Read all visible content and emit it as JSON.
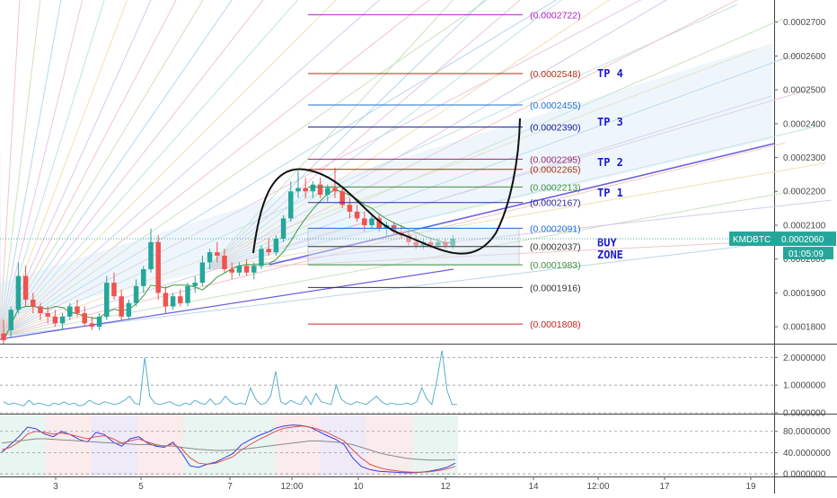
{
  "chart_data": [
    {
      "type": "candlestick",
      "symbol": "KMDBTC",
      "last_price": "0.0002060",
      "countdown": "01:05:09",
      "ylim": [
        0.000175,
        0.000276
      ],
      "y_ticks": [
        "0.0002700",
        "0.0002600",
        "0.0002500",
        "0.0002400",
        "0.0002300",
        "0.0002200",
        "0.0002100",
        "0.0002000",
        "0.0001900",
        "0.0001800"
      ],
      "x_ticks": [
        "3",
        "5",
        "7",
        "12:00",
        "10",
        "12",
        "14",
        "12:00",
        "17",
        "19"
      ],
      "candles": [
        [
          0.000178,
          0.000182,
          0.000175,
          0.000176
        ],
        [
          0.000179,
          0.000186,
          0.000177,
          0.000185
        ],
        [
          0.000185,
          0.000199,
          0.000184,
          0.000195
        ],
        [
          0.000195,
          0.000198,
          0.000186,
          0.000188
        ],
        [
          0.000188,
          0.00019,
          0.000184,
          0.000186
        ],
        [
          0.000186,
          0.000187,
          0.000182,
          0.000184
        ],
        [
          0.000184,
          0.000186,
          0.000181,
          0.000183
        ],
        [
          0.000183,
          0.000185,
          0.00018,
          0.000181
        ],
        [
          0.000181,
          0.000184,
          0.000179,
          0.000183
        ],
        [
          0.000183,
          0.000187,
          0.000182,
          0.000186
        ],
        [
          0.000186,
          0.000188,
          0.000183,
          0.000184
        ],
        [
          0.000184,
          0.000186,
          0.00018,
          0.000181
        ],
        [
          0.000181,
          0.000183,
          0.000179,
          0.00018
        ],
        [
          0.00018,
          0.000184,
          0.000179,
          0.000183
        ],
        [
          0.000183,
          0.000195,
          0.000182,
          0.000193
        ],
        [
          0.000193,
          0.000196,
          0.000188,
          0.000189
        ],
        [
          0.000189,
          0.000191,
          0.000182,
          0.000183
        ],
        [
          0.000183,
          0.000188,
          0.000182,
          0.000187
        ],
        [
          0.000187,
          0.000194,
          0.000186,
          0.000192
        ],
        [
          0.000192,
          0.000198,
          0.00019,
          0.000197
        ],
        [
          0.000197,
          0.000209,
          0.000196,
          0.000205
        ],
        [
          0.000205,
          0.000207,
          0.000188,
          0.00019
        ],
        [
          0.00019,
          0.000192,
          0.000184,
          0.000186
        ],
        [
          0.000186,
          0.00019,
          0.000185,
          0.000189
        ],
        [
          0.000189,
          0.000191,
          0.000186,
          0.000187
        ],
        [
          0.000187,
          0.000193,
          0.000186,
          0.000192
        ],
        [
          0.000192,
          0.000195,
          0.00019,
          0.000193
        ],
        [
          0.000193,
          0.000201,
          0.000192,
          0.000199
        ],
        [
          0.000199,
          0.000203,
          0.000197,
          0.000202
        ],
        [
          0.000202,
          0.000205,
          0.000199,
          0.000201
        ],
        [
          0.000201,
          0.000203,
          0.000196,
          0.000197
        ],
        [
          0.000197,
          0.000199,
          0.000194,
          0.000196
        ],
        [
          0.000196,
          0.000199,
          0.000195,
          0.000198
        ],
        [
          0.000198,
          0.0002,
          0.000195,
          0.000196
        ],
        [
          0.000196,
          0.000199,
          0.000194,
          0.000198
        ],
        [
          0.000198,
          0.000204,
          0.000197,
          0.000203
        ],
        [
          0.000203,
          0.000206,
          0.000201,
          0.000202
        ],
        [
          0.000202,
          0.000207,
          0.000201,
          0.000206
        ],
        [
          0.000206,
          0.000213,
          0.000205,
          0.000212
        ],
        [
          0.000212,
          0.000223,
          0.000211,
          0.00022
        ],
        [
          0.00022,
          0.000226,
          0.000218,
          0.000221
        ],
        [
          0.000221,
          0.000224,
          0.000218,
          0.00022
        ],
        [
          0.00022,
          0.000223,
          0.000218,
          0.000222
        ],
        [
          0.000222,
          0.000224,
          0.000218,
          0.000219
        ],
        [
          0.000219,
          0.000222,
          0.000217,
          0.000221
        ],
        [
          0.000221,
          0.000227,
          0.000218,
          0.00022
        ],
        [
          0.00022,
          0.000221,
          0.000215,
          0.000216
        ],
        [
          0.000216,
          0.000218,
          0.000212,
          0.000214
        ],
        [
          0.000214,
          0.000216,
          0.000211,
          0.000212
        ],
        [
          0.000212,
          0.000214,
          0.000208,
          0.00021
        ],
        [
          0.00021,
          0.000213,
          0.000209,
          0.000212
        ],
        [
          0.000212,
          0.000213,
          0.000208,
          0.000209
        ],
        [
          0.000209,
          0.000211,
          0.000207,
          0.00021
        ],
        [
          0.00021,
          0.000211,
          0.000207,
          0.000208
        ],
        [
          0.000208,
          0.00021,
          0.000206,
          0.000207
        ],
        [
          0.000207,
          0.000208,
          0.000204,
          0.000205
        ],
        [
          0.000205,
          0.000207,
          0.000203,
          0.000204
        ],
        [
          0.000204,
          0.000206,
          0.000203,
          0.000205
        ],
        [
          0.000205,
          0.000206,
          0.000203,
          0.000204
        ],
        [
          0.000204,
          0.000206,
          0.000203,
          0.000205
        ],
        [
          0.000205,
          0.000206,
          0.000203,
          0.000204
        ],
        [
          0.000204,
          0.000207,
          0.000203,
          0.000206
        ]
      ],
      "fib_levels": [
        {
          "label": "(0.0002722)",
          "value": 0.0002722,
          "color": "#b01ec4"
        },
        {
          "label": "(0.0002548)",
          "value": 0.0002548,
          "color": "#b03010"
        },
        {
          "label": "(0.0002455)",
          "value": 0.0002455,
          "color": "#1e6fd6"
        },
        {
          "label": "(0.0002390)",
          "value": 0.000239,
          "color": "#101a9a"
        },
        {
          "label": "(0.0002295)",
          "value": 0.0002295,
          "color": "#9c2a6e"
        },
        {
          "label": "(0.0002265)",
          "value": 0.0002265,
          "color": "#b03010"
        },
        {
          "label": "(0.0002213)",
          "value": 0.0002213,
          "color": "#3e8f3e"
        },
        {
          "label": "(0.0002167)",
          "value": 0.0002167,
          "color": "#2a2a9a"
        },
        {
          "label": "(0.0002091)",
          "value": 0.0002091,
          "color": "#1e6fd6"
        },
        {
          "label": "(0.0002037)",
          "value": 0.0002037,
          "color": "#333333"
        },
        {
          "label": "(0.0001983)",
          "value": 0.0001983,
          "color": "#3e8f3e"
        },
        {
          "label": "(0.0001916)",
          "value": 0.0001916,
          "color": "#333333"
        },
        {
          "label": "(0.0001808)",
          "value": 0.0001808,
          "color": "#d02020"
        }
      ],
      "annotations": [
        {
          "text": "TP 4",
          "value": 0.0002548
        },
        {
          "text": "TP 3",
          "value": 0.0002405
        },
        {
          "text": "TP 2",
          "value": 0.0002285
        },
        {
          "text": "TP 1",
          "value": 0.0002195
        },
        {
          "text": "BUY",
          "value": 0.0002048
        },
        {
          "text": "ZONE",
          "value": 0.0002012
        }
      ],
      "up_color": "#26a69a",
      "down_color": "#ef5350"
    },
    {
      "type": "line",
      "ylim": [
        0,
        2.4
      ],
      "y_ticks": [
        "2.0000000",
        "1.0000000",
        "0.0000000"
      ],
      "values": [
        0.4,
        0.3,
        0.35,
        0.3,
        0.25,
        0.45,
        0.3,
        0.35,
        0.3,
        0.25,
        0.35,
        0.3,
        0.4,
        0.3,
        0.35,
        0.25,
        0.3,
        0.45,
        0.35,
        0.3,
        0.4,
        0.35,
        0.3,
        0.35,
        0.45,
        0.6,
        0.35,
        0.3,
        2.0,
        0.6,
        0.35,
        0.3,
        0.35,
        0.4,
        0.3,
        0.25,
        0.35,
        0.3,
        0.45,
        0.35,
        0.3,
        0.5,
        0.3,
        0.35,
        0.6,
        0.4,
        0.3,
        0.35,
        0.3,
        0.9,
        0.5,
        0.3,
        0.35,
        0.6,
        1.5,
        0.4,
        0.3,
        0.45,
        0.35,
        0.3,
        0.6,
        0.3,
        0.7,
        0.4,
        0.35,
        0.3,
        1.0,
        0.5,
        0.35,
        0.3,
        0.4,
        0.35,
        0.3,
        0.45,
        0.6,
        0.4,
        0.3,
        0.35,
        0.3,
        0.3,
        0.35,
        0.3,
        0.4,
        0.9,
        0.5,
        0.3,
        1.2,
        2.25,
        0.8,
        0.3,
        0.3
      ],
      "color": "#5aaecc"
    },
    {
      "type": "line",
      "ylim": [
        -5,
        110
      ],
      "y_ticks": [
        "80.0000000",
        "40.0000000",
        "0.0000000"
      ],
      "series": [
        {
          "values": [
            40,
            55,
            70,
            88,
            85,
            75,
            70,
            80,
            74,
            65,
            60,
            78,
            74,
            60,
            52,
            66,
            70,
            58,
            52,
            50,
            60,
            40,
            15,
            12,
            18,
            22,
            30,
            38,
            55,
            64,
            72,
            78,
            86,
            90,
            92,
            91,
            88,
            80,
            72,
            65,
            55,
            30,
            14,
            8,
            5,
            4,
            3,
            2,
            2,
            3,
            5,
            8,
            12,
            20
          ],
          "color": "#3a3ae0"
        },
        {
          "values": [
            45,
            50,
            60,
            75,
            80,
            78,
            75,
            77,
            74,
            70,
            66,
            70,
            72,
            66,
            58,
            62,
            66,
            60,
            55,
            52,
            56,
            48,
            30,
            20,
            18,
            20,
            26,
            32,
            45,
            55,
            64,
            72,
            80,
            86,
            88,
            90,
            88,
            84,
            78,
            70,
            62,
            45,
            30,
            18,
            12,
            8,
            6,
            4,
            3,
            3,
            4,
            6,
            9,
            14
          ],
          "color": "#e05050"
        },
        {
          "values": [
            58,
            60,
            62,
            64,
            66,
            66,
            65,
            64,
            63,
            62,
            61,
            60,
            59,
            58,
            57,
            56,
            55,
            55,
            54,
            53,
            52,
            50,
            48,
            46,
            45,
            44,
            44,
            45,
            46,
            48,
            50,
            52,
            54,
            56,
            58,
            60,
            62,
            62,
            61,
            60,
            58,
            55,
            50,
            45,
            40,
            36,
            33,
            30,
            28,
            27,
            26,
            26,
            26,
            27
          ],
          "color": "#8a8a8a"
        }
      ]
    }
  ]
}
